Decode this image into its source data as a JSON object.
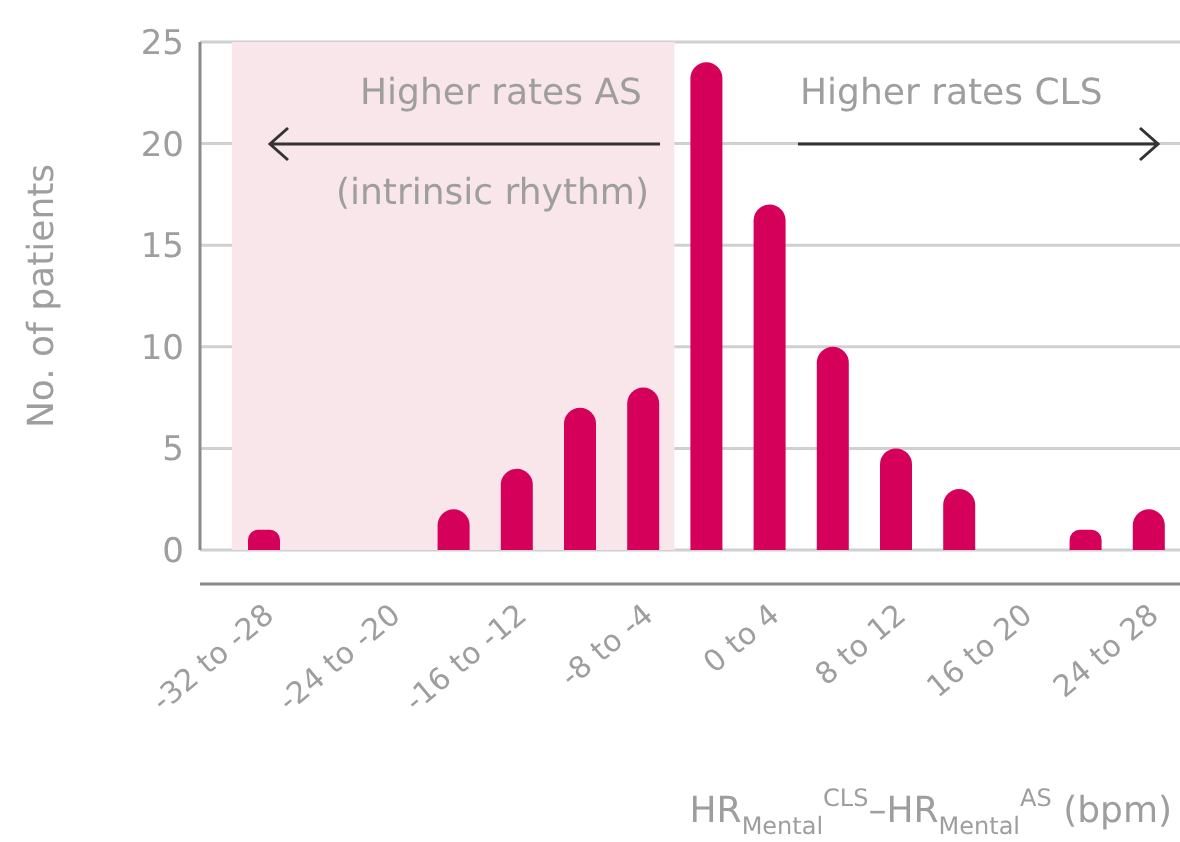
{
  "chart_data": {
    "type": "bar",
    "ylabel": "No. of patients",
    "xlabel": "HR$_{Mental}$$^{CLS}$–HR$_{Mental}$$^{AS}$ (bpm)",
    "categories": [
      "-32 to -28",
      null,
      "-24 to -20",
      null,
      "-16 to -12",
      null,
      "-8 to -4",
      null,
      "0 to 4",
      null,
      "8 to 12",
      null,
      "16 to 20",
      null,
      "24 to 28"
    ],
    "values": [
      1,
      0,
      0,
      2,
      4,
      7,
      8,
      24,
      17,
      10,
      5,
      3,
      0,
      1,
      2
    ],
    "color": "#d4005a",
    "ylim": [
      0,
      25
    ],
    "yticks": [
      0,
      5,
      10,
      15,
      20,
      25
    ],
    "grid": "y",
    "bands": [
      {
        "axis": "x",
        "from": "-32 to -28",
        "to": "-8 to -4",
        "color": "#f9e6ea"
      }
    ],
    "annotations": [
      "Higher rates AS",
      "(intrinsic rhythm)",
      "Higher rates CLS"
    ]
  }
}
